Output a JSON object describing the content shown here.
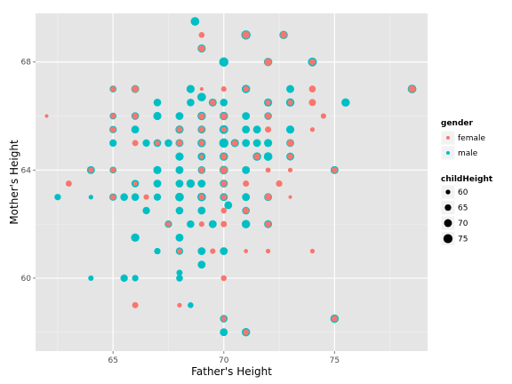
{
  "chart_data": {
    "type": "scatter",
    "title": "",
    "xlabel": "Father's Height",
    "ylabel": "Mother's Height",
    "xlim": [
      61.5,
      79.2
    ],
    "ylim": [
      57.3,
      69.8
    ],
    "x_ticks": [
      65,
      70,
      75
    ],
    "y_ticks": [
      60,
      64,
      68
    ],
    "grid": true,
    "panel_background": "#e5e5e5",
    "colors": {
      "female": "#f8766d",
      "male": "#00bfc4"
    },
    "legend": {
      "placement": "right",
      "color_title": "gender",
      "color_items": [
        {
          "label": "female",
          "key": "female"
        },
        {
          "label": "male",
          "key": "male"
        }
      ],
      "size_title": "childHeight",
      "size_items": [
        {
          "label": "60",
          "value": 60
        },
        {
          "label": "65",
          "value": 65
        },
        {
          "label": "70",
          "value": 70
        },
        {
          "label": "75",
          "value": 75
        }
      ]
    },
    "size_scale": {
      "domain": [
        56,
        79
      ],
      "radius": [
        1.3,
        5.6
      ]
    },
    "series": [
      {
        "name": "male",
        "points": [
          [
            68.7,
            69.5,
            73
          ],
          [
            71.0,
            69.0,
            76
          ],
          [
            72.7,
            69.0,
            72
          ],
          [
            69.0,
            68.5,
            71
          ],
          [
            70.0,
            68.0,
            76
          ],
          [
            72.0,
            68.0,
            72
          ],
          [
            74.0,
            68.0,
            74
          ],
          [
            78.5,
            67.0,
            73
          ],
          [
            65.0,
            67.0,
            66
          ],
          [
            66.0,
            67.0,
            70
          ],
          [
            68.5,
            67.0,
            71
          ],
          [
            69.0,
            66.7,
            73
          ],
          [
            71.0,
            67.0,
            72
          ],
          [
            73.0,
            67.0,
            70
          ],
          [
            67.0,
            66.5,
            69
          ],
          [
            68.5,
            66.5,
            69
          ],
          [
            69.5,
            66.5,
            70
          ],
          [
            70.0,
            66.5,
            69
          ],
          [
            72.0,
            66.5,
            71
          ],
          [
            73.0,
            66.5,
            72
          ],
          [
            75.5,
            66.5,
            72
          ],
          [
            65.0,
            66.0,
            66
          ],
          [
            66.0,
            66.0,
            69
          ],
          [
            67.0,
            66.0,
            71
          ],
          [
            68.0,
            66.0,
            70
          ],
          [
            69.0,
            66.0,
            72
          ],
          [
            70.0,
            66.0,
            72
          ],
          [
            71.0,
            66.0,
            70
          ],
          [
            72.0,
            66.0,
            69
          ],
          [
            65.0,
            65.5,
            68
          ],
          [
            66.0,
            65.5,
            70
          ],
          [
            68.0,
            65.5,
            71
          ],
          [
            69.0,
            65.5,
            70
          ],
          [
            70.0,
            65.5,
            74
          ],
          [
            71.0,
            65.5,
            70
          ],
          [
            71.5,
            65.5,
            70
          ],
          [
            73.0,
            65.5,
            71
          ],
          [
            65.0,
            65.0,
            68
          ],
          [
            66.5,
            65.0,
            68
          ],
          [
            67.0,
            65.0,
            69
          ],
          [
            67.5,
            65.0,
            69
          ],
          [
            68.0,
            65.0,
            70
          ],
          [
            69.0,
            65.0,
            72
          ],
          [
            70.0,
            65.0,
            76
          ],
          [
            70.5,
            65.0,
            71
          ],
          [
            71.0,
            65.0,
            70
          ],
          [
            71.5,
            65.0,
            70
          ],
          [
            72.0,
            65.0,
            71
          ],
          [
            73.0,
            65.0,
            70
          ],
          [
            68.0,
            64.5,
            71
          ],
          [
            69.0,
            64.5,
            70
          ],
          [
            70.0,
            64.5,
            72
          ],
          [
            71.5,
            64.5,
            72
          ],
          [
            72.0,
            64.5,
            73
          ],
          [
            73.0,
            64.5,
            70
          ],
          [
            64.0,
            64.0,
            70
          ],
          [
            65.0,
            64.0,
            66
          ],
          [
            67.0,
            64.0,
            71
          ],
          [
            68.0,
            64.0,
            70
          ],
          [
            69.0,
            64.0,
            69
          ],
          [
            70.0,
            64.0,
            73
          ],
          [
            71.0,
            64.0,
            70
          ],
          [
            75.0,
            64.0,
            70
          ],
          [
            66.0,
            63.5,
            69
          ],
          [
            67.0,
            63.5,
            70
          ],
          [
            68.0,
            63.5,
            70
          ],
          [
            68.5,
            63.5,
            72
          ],
          [
            69.0,
            63.5,
            70
          ],
          [
            70.0,
            63.5,
            70
          ],
          [
            62.5,
            63.0,
            65
          ],
          [
            64.0,
            63.0,
            60
          ],
          [
            65.0,
            63.0,
            68
          ],
          [
            65.5,
            63.0,
            69
          ],
          [
            66.0,
            63.0,
            69
          ],
          [
            67.0,
            63.0,
            68
          ],
          [
            68.0,
            63.0,
            73
          ],
          [
            69.0,
            63.0,
            73
          ],
          [
            70.0,
            63.0,
            70
          ],
          [
            71.0,
            63.0,
            70
          ],
          [
            72.0,
            63.0,
            70
          ],
          [
            66.5,
            62.5,
            68
          ],
          [
            68.0,
            62.5,
            69
          ],
          [
            69.0,
            62.5,
            70
          ],
          [
            70.2,
            62.7,
            70
          ],
          [
            71.0,
            62.5,
            69
          ],
          [
            67.5,
            62.0,
            68
          ],
          [
            68.5,
            62.0,
            69
          ],
          [
            69.5,
            62.0,
            70
          ],
          [
            71.0,
            62.0,
            72
          ],
          [
            72.0,
            62.0,
            70
          ],
          [
            66.0,
            61.5,
            72
          ],
          [
            68.0,
            61.5,
            70
          ],
          [
            67.0,
            61.0,
            65
          ],
          [
            68.0,
            61.0,
            68
          ],
          [
            69.0,
            61.0,
            70
          ],
          [
            70.0,
            61.0,
            70
          ],
          [
            64.0,
            60.0,
            62
          ],
          [
            65.5,
            60.0,
            68
          ],
          [
            66.0,
            60.0,
            65
          ],
          [
            68.0,
            60.2,
            64
          ],
          [
            68.5,
            59.0,
            63
          ],
          [
            68.0,
            60.0,
            66
          ],
          [
            69.0,
            60.5,
            70
          ],
          [
            70.0,
            58.5,
            69
          ],
          [
            71.0,
            58.0,
            72
          ],
          [
            70.0,
            58.0,
            70
          ],
          [
            75.0,
            58.5,
            72
          ]
        ]
      },
      {
        "name": "female",
        "points": [
          [
            69.0,
            69.0,
            63
          ],
          [
            71.0,
            69.0,
            68
          ],
          [
            72.7,
            69.0,
            66
          ],
          [
            69.0,
            68.5,
            66
          ],
          [
            72.0,
            68.0,
            68
          ],
          [
            74.0,
            68.0,
            64
          ],
          [
            78.5,
            67.0,
            67
          ],
          [
            65.0,
            67.0,
            62
          ],
          [
            66.0,
            67.0,
            66
          ],
          [
            69.0,
            67.0,
            58
          ],
          [
            70.0,
            67.0,
            62
          ],
          [
            71.0,
            67.0,
            63
          ],
          [
            74.0,
            67.0,
            66
          ],
          [
            69.5,
            66.5,
            64
          ],
          [
            72.0,
            66.5,
            62
          ],
          [
            73.0,
            66.5,
            62
          ],
          [
            74.0,
            66.5,
            67
          ],
          [
            62.0,
            66.0,
            58
          ],
          [
            65.0,
            66.0,
            62
          ],
          [
            66.0,
            66.0,
            64
          ],
          [
            69.0,
            66.0,
            65
          ],
          [
            70.0,
            66.0,
            66
          ],
          [
            72.0,
            66.0,
            64
          ],
          [
            74.5,
            66.0,
            62
          ],
          [
            65.0,
            65.5,
            63
          ],
          [
            68.0,
            65.5,
            64
          ],
          [
            69.0,
            65.5,
            64
          ],
          [
            70.0,
            65.5,
            62
          ],
          [
            72.0,
            65.5,
            64
          ],
          [
            74.0,
            65.5,
            60
          ],
          [
            66.0,
            65.0,
            64
          ],
          [
            67.0,
            65.0,
            62
          ],
          [
            68.0,
            65.0,
            65
          ],
          [
            69.0,
            65.0,
            64
          ],
          [
            70.5,
            65.0,
            64
          ],
          [
            73.0,
            65.0,
            66
          ],
          [
            69.0,
            64.5,
            60
          ],
          [
            70.0,
            64.5,
            64
          ],
          [
            71.5,
            64.5,
            64
          ],
          [
            73.0,
            64.5,
            63
          ],
          [
            64.0,
            64.0,
            62
          ],
          [
            65.0,
            64.0,
            62
          ],
          [
            69.0,
            64.0,
            64
          ],
          [
            70.0,
            64.0,
            67
          ],
          [
            72.0,
            64.0,
            61
          ],
          [
            73.0,
            64.0,
            60
          ],
          [
            75.0,
            64.0,
            64
          ],
          [
            63.0,
            63.5,
            64
          ],
          [
            66.0,
            63.5,
            60
          ],
          [
            70.0,
            63.5,
            64
          ],
          [
            71.0,
            63.5,
            64
          ],
          [
            72.5,
            63.5,
            65
          ],
          [
            65.0,
            63.0,
            63
          ],
          [
            66.5,
            63.0,
            62
          ],
          [
            69.0,
            63.0,
            64
          ],
          [
            70.0,
            63.0,
            63
          ],
          [
            72.0,
            63.0,
            66
          ],
          [
            73.0,
            63.0,
            58
          ],
          [
            70.0,
            62.5,
            63
          ],
          [
            71.0,
            62.5,
            64
          ],
          [
            67.5,
            62.0,
            62
          ],
          [
            69.0,
            62.0,
            62
          ],
          [
            70.0,
            62.0,
            64
          ],
          [
            72.0,
            62.0,
            64
          ],
          [
            68.0,
            61.0,
            61
          ],
          [
            69.5,
            61.0,
            62
          ],
          [
            71.0,
            61.0,
            59
          ],
          [
            72.0,
            61.0,
            60
          ],
          [
            74.0,
            61.0,
            60
          ],
          [
            70.0,
            60.0,
            63
          ],
          [
            66.0,
            59.0,
            64
          ],
          [
            68.0,
            59.0,
            60
          ],
          [
            70.0,
            58.5,
            62
          ],
          [
            71.0,
            58.0,
            63
          ],
          [
            75.0,
            58.5,
            64
          ]
        ]
      }
    ]
  }
}
